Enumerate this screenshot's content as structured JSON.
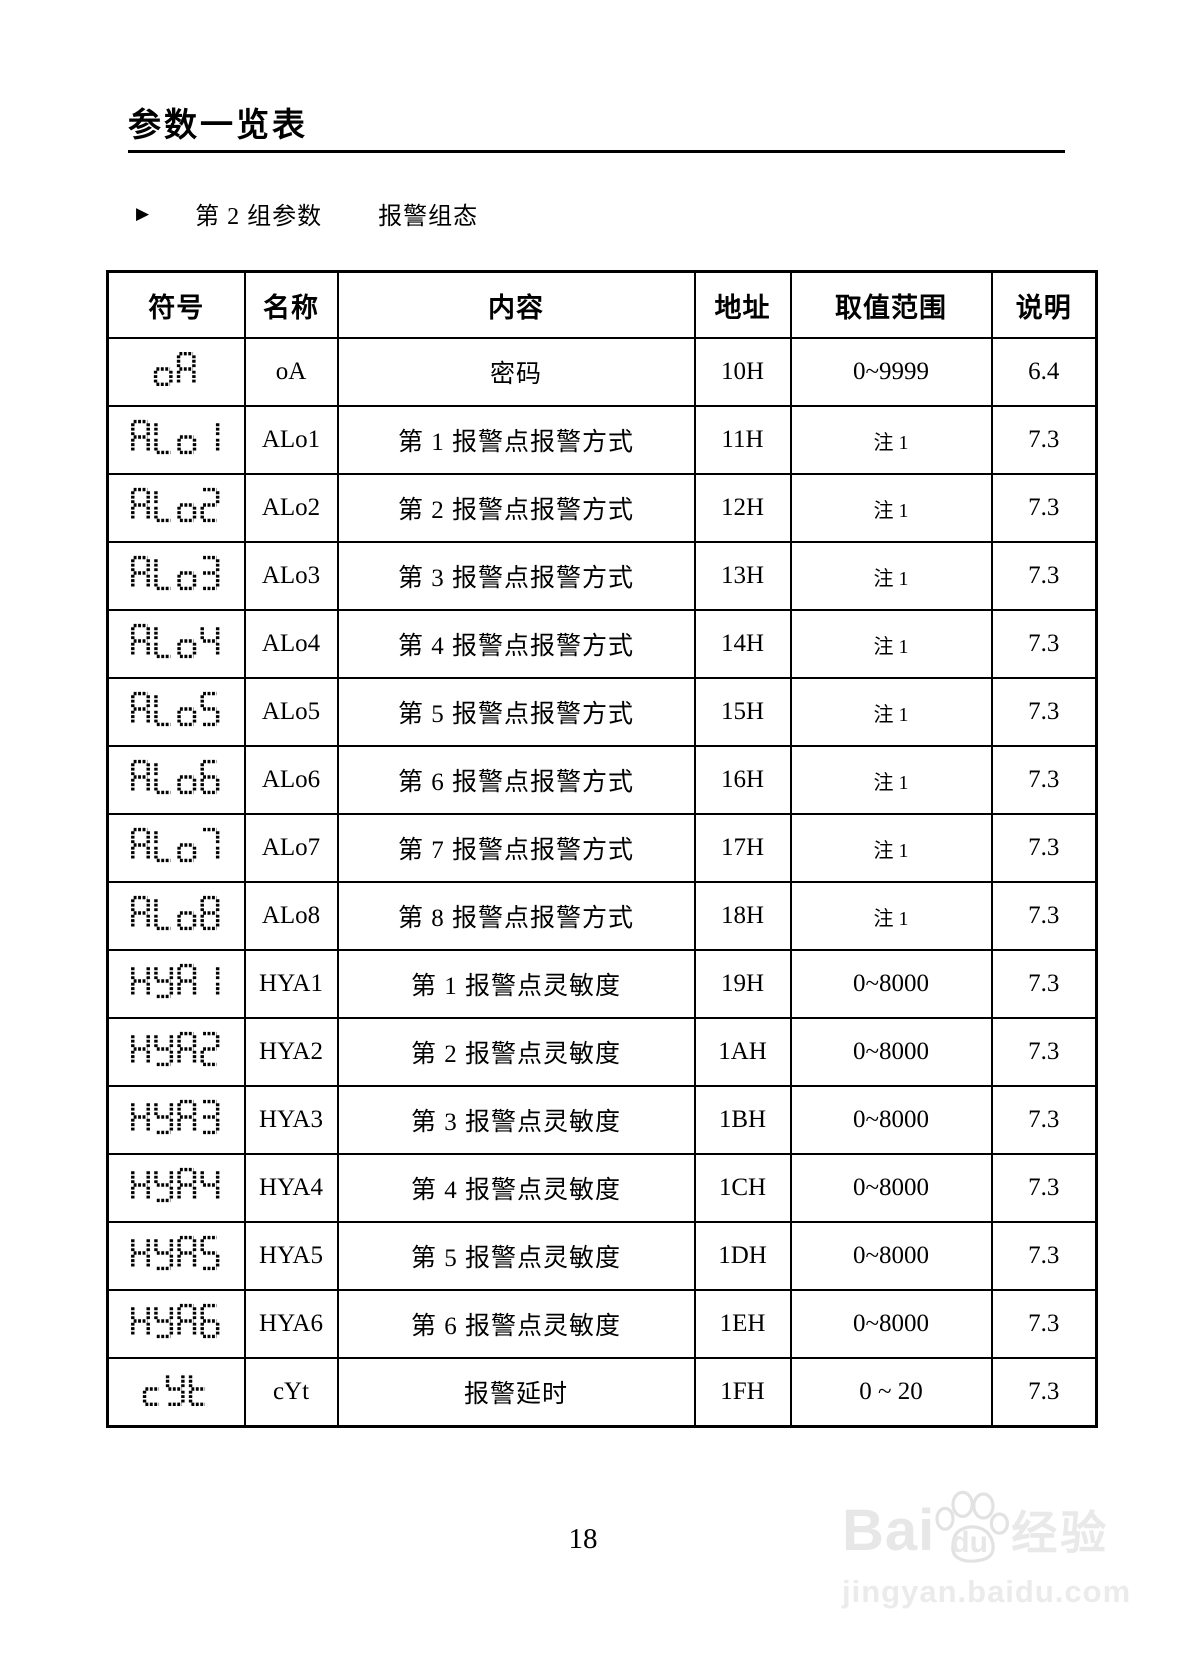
{
  "page": {
    "title": "参数一览表",
    "section_bullet": "▶",
    "section_label": "第 2 组参数",
    "section_sublabel": "报警组态",
    "page_number": "18"
  },
  "table": {
    "headers": [
      "符号",
      "名称",
      "内容",
      "地址",
      "取值范围",
      "说明"
    ],
    "rows": [
      {
        "symbol": "oA",
        "name": "oA",
        "content": "密码",
        "address": "10H",
        "range": "0~9999",
        "note": "6.4"
      },
      {
        "symbol": "ALo1",
        "name": "ALo1",
        "content": "第 1 报警点报警方式",
        "address": "11H",
        "range": "注 1",
        "note": "7.3"
      },
      {
        "symbol": "ALo2",
        "name": "ALo2",
        "content": "第 2 报警点报警方式",
        "address": "12H",
        "range": "注 1",
        "note": "7.3"
      },
      {
        "symbol": "ALo3",
        "name": "ALo3",
        "content": "第 3 报警点报警方式",
        "address": "13H",
        "range": "注 1",
        "note": "7.3"
      },
      {
        "symbol": "ALo4",
        "name": "ALo4",
        "content": "第 4 报警点报警方式",
        "address": "14H",
        "range": "注 1",
        "note": "7.3"
      },
      {
        "symbol": "ALo5",
        "name": "ALo5",
        "content": "第 5 报警点报警方式",
        "address": "15H",
        "range": "注 1",
        "note": "7.3"
      },
      {
        "symbol": "ALo6",
        "name": "ALo6",
        "content": "第 6 报警点报警方式",
        "address": "16H",
        "range": "注 1",
        "note": "7.3"
      },
      {
        "symbol": "ALo7",
        "name": "ALo7",
        "content": "第 7 报警点报警方式",
        "address": "17H",
        "range": "注 1",
        "note": "7.3"
      },
      {
        "symbol": "ALo8",
        "name": "ALo8",
        "content": "第 8 报警点报警方式",
        "address": "18H",
        "range": "注 1",
        "note": "7.3"
      },
      {
        "symbol": "HYA1",
        "name": "HYA1",
        "content": "第 1 报警点灵敏度",
        "address": "19H",
        "range": "0~8000",
        "note": "7.3"
      },
      {
        "symbol": "HYA2",
        "name": "HYA2",
        "content": "第 2 报警点灵敏度",
        "address": "1AH",
        "range": "0~8000",
        "note": "7.3"
      },
      {
        "symbol": "HYA3",
        "name": "HYA3",
        "content": "第 3 报警点灵敏度",
        "address": "1BH",
        "range": "0~8000",
        "note": "7.3"
      },
      {
        "symbol": "HYA4",
        "name": "HYA4",
        "content": "第 4 报警点灵敏度",
        "address": "1CH",
        "range": "0~8000",
        "note": "7.3"
      },
      {
        "symbol": "HYA5",
        "name": "HYA5",
        "content": "第 5 报警点灵敏度",
        "address": "1DH",
        "range": "0~8000",
        "note": "7.3"
      },
      {
        "symbol": "HYA6",
        "name": "HYA6",
        "content": "第 6 报警点灵敏度",
        "address": "1EH",
        "range": "0~8000",
        "note": "7.3"
      },
      {
        "symbol": "cYt",
        "name": "cYt",
        "content": "报警延时",
        "address": "1FH",
        "range": "0 ~ 20",
        "note": "7.3"
      }
    ]
  },
  "watermark": {
    "brand_left": "Bai",
    "brand_right": "du",
    "suffix": "经验",
    "url": "jingyan.baidu.com"
  },
  "colors": {
    "ink": "#000000",
    "watermark_gray": "#e7e7e7"
  }
}
